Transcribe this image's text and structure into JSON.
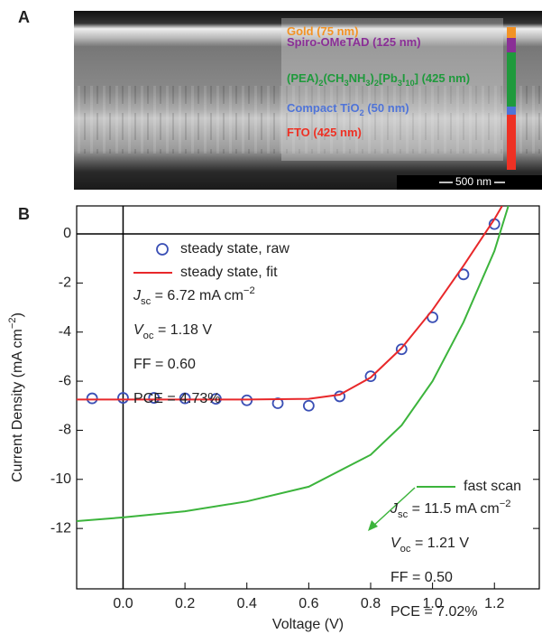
{
  "panel_a": {
    "label": "A",
    "layers": [
      {
        "parts": [
          {
            "text": "Gold (75 nm)"
          }
        ],
        "color": "#f39325"
      },
      {
        "parts": [
          {
            "text": "Spiro-OMeTAD (125 nm)"
          }
        ],
        "color": "#8a2f96"
      },
      {
        "parts": [
          {
            "text": "(PEA)"
          },
          {
            "text": "2",
            "style": "sub"
          },
          {
            "text": "(CH"
          },
          {
            "text": "3",
            "style": "sub"
          },
          {
            "text": "NH"
          },
          {
            "text": "3",
            "style": "sub"
          },
          {
            "text": ")"
          },
          {
            "text": "2",
            "style": "sub"
          },
          {
            "text": "[Pb"
          },
          {
            "text": "3",
            "style": "sub"
          },
          {
            "text": "I"
          },
          {
            "text": "10",
            "style": "sub"
          },
          {
            "text": "] (425 nm)"
          }
        ],
        "color": "#1f9a3c"
      },
      {
        "parts": [
          {
            "text": "Compact TiO"
          },
          {
            "text": "2",
            "style": "sub"
          },
          {
            "text": " (50 nm)"
          }
        ],
        "color": "#4f74d8"
      },
      {
        "parts": [
          {
            "text": "FTO (425 nm)"
          }
        ],
        "color": "#ee3124"
      }
    ],
    "scale_bar": "500 nm"
  },
  "chart_data": {
    "type": "line",
    "panel_label": "B",
    "x_label": "Voltage (V)",
    "y_label": [
      {
        "text": "Current Density (mA cm"
      },
      {
        "text": "−2",
        "style": "sup"
      },
      {
        "text": ")"
      }
    ],
    "xlim": [
      -0.15,
      1.345
    ],
    "ylim": [
      -14.46,
      1.14
    ],
    "xticks": [
      {
        "value": 0,
        "label": "0.0"
      },
      {
        "value": 0.2,
        "label": "0.2"
      },
      {
        "value": 0.4,
        "label": "0.4"
      },
      {
        "value": 0.6,
        "label": "0.6"
      },
      {
        "value": 0.8,
        "label": "0.8"
      },
      {
        "value": 1.0,
        "label": "1.0"
      },
      {
        "value": 1.2,
        "label": "1.2"
      }
    ],
    "yticks": [
      0,
      -2,
      -4,
      -6,
      -8,
      -10,
      -12
    ],
    "series": [
      {
        "name": "steady state, raw",
        "type": "scatter",
        "color": "#3a4fb5",
        "x": [
          -0.1,
          0,
          0.1,
          0.2,
          0.3,
          0.4,
          0.5,
          0.6,
          0.7,
          0.8,
          0.9,
          1.0,
          1.1,
          1.2
        ],
        "values": [
          -6.7,
          -6.68,
          -6.68,
          -6.7,
          -6.72,
          -6.78,
          -6.9,
          -7.0,
          -6.62,
          -5.8,
          -4.7,
          -3.4,
          -1.65,
          0.4
        ]
      },
      {
        "name": "steady state, fit",
        "type": "line",
        "color": "#e8282a",
        "x": [
          -0.15,
          0,
          0.2,
          0.4,
          0.6,
          0.7,
          0.8,
          0.9,
          1.0,
          1.1,
          1.2,
          1.225
        ],
        "values": [
          -6.75,
          -6.75,
          -6.75,
          -6.75,
          -6.72,
          -6.55,
          -5.85,
          -4.65,
          -3.1,
          -1.3,
          0.6,
          1.14
        ]
      },
      {
        "name": "fast scan",
        "type": "line",
        "color": "#3cb43c",
        "x": [
          -0.15,
          0,
          0.2,
          0.4,
          0.6,
          0.8,
          0.9,
          1.0,
          1.1,
          1.2,
          1.245
        ],
        "values": [
          -11.7,
          -11.55,
          -11.3,
          -10.9,
          -10.3,
          -9.0,
          -7.8,
          -6.0,
          -3.6,
          -0.7,
          1.14
        ]
      }
    ],
    "annotations": [
      {
        "lines": [
          [
            {
              "text": "J",
              "style": "italic"
            },
            {
              "text": "sc",
              "style": "sub"
            },
            {
              "text": " = 6.72 mA cm"
            },
            {
              "text": "−2",
              "style": "sup"
            }
          ],
          [
            {
              "text": "V",
              "style": "italic"
            },
            {
              "text": "oc",
              "style": "sub"
            },
            {
              "text": " = 1.18 V"
            }
          ],
          [
            {
              "text": "FF = 0.60"
            }
          ],
          [
            {
              "text": "PCE = 4.73%"
            }
          ]
        ]
      },
      {
        "lines": [
          [
            {
              "text": "J",
              "style": "italic"
            },
            {
              "text": "sc",
              "style": "sub"
            },
            {
              "text": " = 11.5 mA cm"
            },
            {
              "text": "−2",
              "style": "sup"
            }
          ],
          [
            {
              "text": "V",
              "style": "italic"
            },
            {
              "text": "oc",
              "style": "sub"
            },
            {
              "text": " = 1.21 V"
            }
          ],
          [
            {
              "text": "FF = 0.50"
            }
          ],
          [
            {
              "text": "PCE = 7.02%"
            }
          ]
        ]
      }
    ]
  }
}
